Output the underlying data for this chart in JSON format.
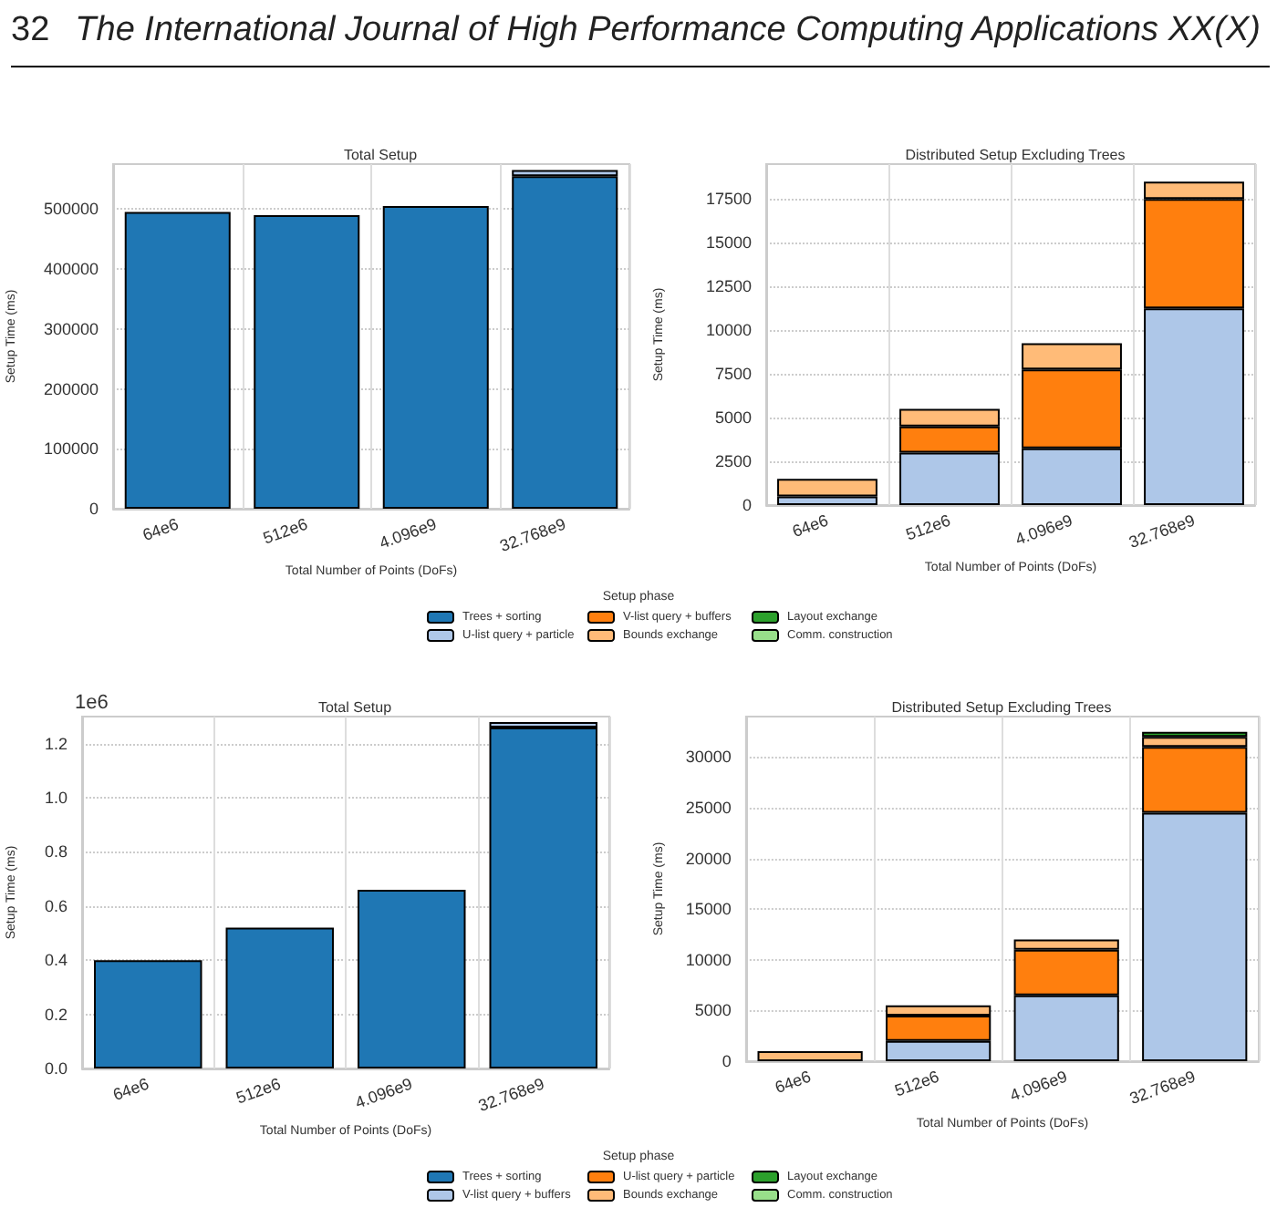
{
  "chart_data": [
    {
      "type": "bar",
      "title": "Total Setup",
      "xlabel": "Total Number of Points (DoFs)",
      "ylabel": "Setup Time (ms)",
      "annotations": [
        "32",
        "The International Journal of High Performance Computing Applications XX(X)"
      ],
      "categories": [
        "64e6",
        "512e6",
        "4.096e9",
        "32.768e9"
      ],
      "stacked": true,
      "grid": true,
      "legend": "bottom",
      "legend_title": "Setup phase",
      "ylim": [
        0,
        575000
      ],
      "yticks": [
        0,
        100000,
        200000,
        300000,
        400000,
        500000
      ],
      "series": [
        {
          "name": "Trees + sorting",
          "color": "#1f77b4",
          "values": [
            495000,
            490000,
            505000,
            555000
          ]
        },
        {
          "name": "U-list query + particle",
          "color": "#aec7e8",
          "values": [
            null,
            null,
            null,
            10000
          ]
        },
        {
          "name": "V-list query + buffers",
          "color": "#ff7f0e",
          "values": [
            null,
            null,
            null,
            null
          ]
        },
        {
          "name": "Bounds exchange",
          "color": "#ffbb78",
          "values": [
            null,
            null,
            null,
            null
          ]
        },
        {
          "name": "Layout exchange",
          "color": "#2ca02c",
          "values": [
            null,
            null,
            null,
            null
          ]
        },
        {
          "name": "Comm. construction",
          "color": "#98df8a",
          "values": [
            null,
            null,
            null,
            null
          ]
        }
      ]
    },
    {
      "type": "bar",
      "title": "Distributed Setup Excluding Trees",
      "xlabel": "Total Number of Points (DoFs)",
      "ylabel": "Setup Time (ms)",
      "categories": [
        "64e6",
        "512e6",
        "4.096e9",
        "32.768e9"
      ],
      "stacked": true,
      "grid": true,
      "ylim": [
        0,
        19500
      ],
      "yticks": [
        0,
        2500,
        5000,
        7500,
        10000,
        12500,
        15000,
        17500
      ],
      "series": [
        {
          "color": "#aec7e8",
          "values": [
            500,
            3000,
            3250,
            11250
          ]
        },
        {
          "color": "#ff7f0e",
          "values": [
            null,
            1500,
            4500,
            6250
          ]
        },
        {
          "color": "#ffbb78",
          "values": [
            1000,
            1000,
            1500,
            1000
          ]
        }
      ]
    },
    {
      "type": "bar",
      "title": "Total Setup",
      "xlabel": "Total Number of Points (DoFs)",
      "ylabel": "Setup Time (ms)",
      "annotations": [
        "1e6"
      ],
      "categories": [
        "64e6",
        "512e6",
        "4.096e9",
        "32.768e9"
      ],
      "stacked": true,
      "grid": true,
      "legend": "bottom",
      "legend_title": "Setup phase",
      "ylim": [
        0,
        1.3
      ],
      "yticks": [
        {
          "value": 0,
          "label": "0.0"
        },
        0.2,
        0.4,
        0.6,
        0.8,
        {
          "value": 1,
          "label": "1.0"
        },
        1.2
      ],
      "series": [
        {
          "name": "Trees + sorting",
          "color": "#1f77b4",
          "values": [
            0.4,
            0.52,
            0.66,
            1.26
          ]
        },
        {
          "name": "V-list query + buffers",
          "color": "#aec7e8",
          "values": [
            null,
            null,
            null,
            0.02
          ]
        },
        {
          "name": "U-list query + particle",
          "color": "#ff7f0e",
          "values": [
            null,
            null,
            null,
            null
          ]
        },
        {
          "name": "Bounds exchange",
          "color": "#ffbb78",
          "values": [
            null,
            null,
            null,
            null
          ]
        },
        {
          "name": "Layout exchange",
          "color": "#2ca02c",
          "values": [
            null,
            null,
            null,
            null
          ]
        },
        {
          "name": "Comm. construction",
          "color": "#98df8a",
          "values": [
            null,
            null,
            null,
            null
          ]
        }
      ]
    },
    {
      "type": "bar",
      "title": "Distributed Setup Excluding Trees",
      "xlabel": "Total Number of Points (DoFs)",
      "ylabel": "Setup Time (ms)",
      "categories": [
        "64e6",
        "512e6",
        "4.096e9",
        "32.768e9"
      ],
      "stacked": true,
      "grid": true,
      "ylim": [
        0,
        34000
      ],
      "yticks": [
        0,
        5000,
        10000,
        15000,
        20000,
        25000,
        30000
      ],
      "series": [
        {
          "color": "#aec7e8",
          "values": [
            null,
            2000,
            6500,
            24500
          ]
        },
        {
          "color": "#ff7f0e",
          "values": [
            null,
            2500,
            4500,
            6500
          ]
        },
        {
          "color": "#ffbb78",
          "values": [
            1000,
            1000,
            1000,
            1000
          ]
        },
        {
          "color": "#2ca02c",
          "values": [
            null,
            null,
            null,
            500
          ]
        }
      ]
    }
  ]
}
